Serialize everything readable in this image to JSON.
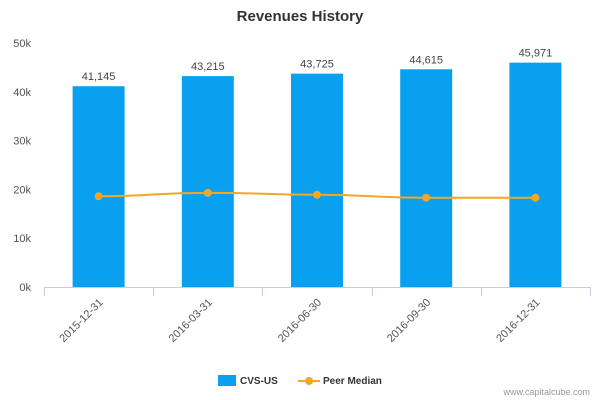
{
  "chart_data": {
    "type": "bar",
    "title": "Revenues History",
    "categories": [
      "2015-12-31",
      "2016-03-31",
      "2016-06-30",
      "2016-09-30",
      "2016-12-31"
    ],
    "series": [
      {
        "name": "CVS-US",
        "type": "bar",
        "color": "#0aa0f0",
        "values": [
          41145,
          43215,
          43725,
          44615,
          45971
        ],
        "labels": [
          "41,145",
          "43,215",
          "43,725",
          "44,615",
          "45,971"
        ]
      },
      {
        "name": "Peer Median",
        "type": "line",
        "color": "#f5a623",
        "values": [
          18600,
          19300,
          18900,
          18300,
          18300
        ]
      }
    ],
    "ylim": [
      0,
      50000
    ],
    "yticks": [
      {
        "value": 0,
        "label": "0k"
      },
      {
        "value": 10000,
        "label": "10k"
      },
      {
        "value": 20000,
        "label": "20k"
      },
      {
        "value": 30000,
        "label": "30k"
      },
      {
        "value": 40000,
        "label": "40k"
      },
      {
        "value": 50000,
        "label": "50k"
      }
    ],
    "grid": false,
    "legend_position": "bottom-center"
  },
  "credit": "www.capitalcube.com"
}
